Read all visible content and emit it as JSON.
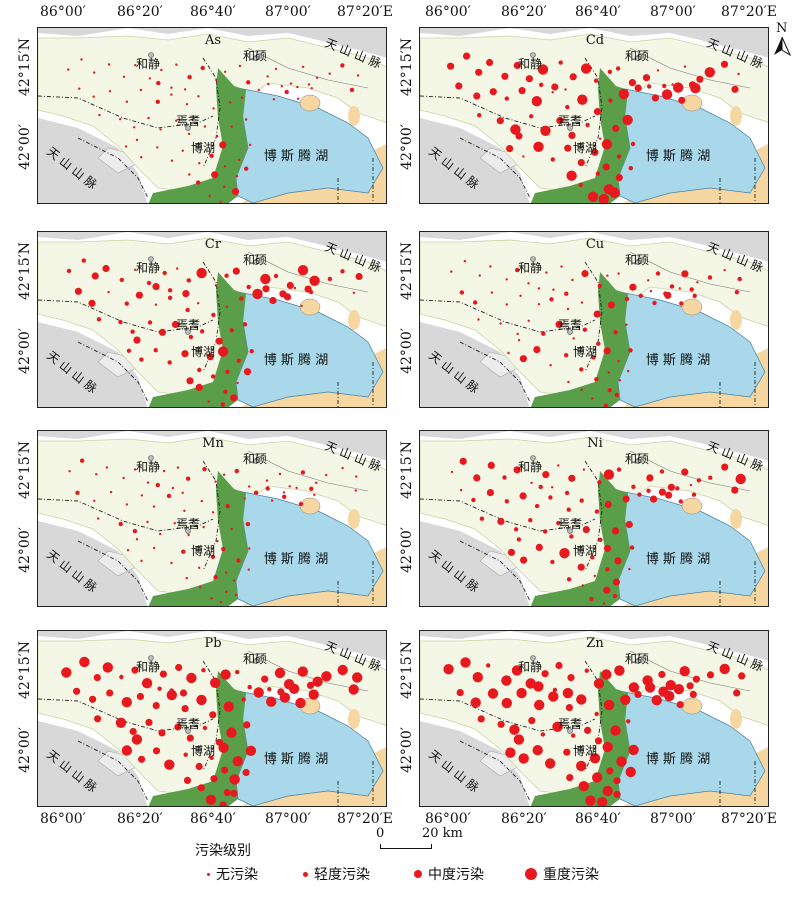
{
  "lon_labels": [
    "86°00′",
    "86°20′",
    "86°40′",
    "87°00′",
    "87°20′E"
  ],
  "lat_labels": [
    "42°15′N",
    "42°00′"
  ],
  "north_label": "N",
  "scale": {
    "start": "0",
    "end": "20 km"
  },
  "place_names": {
    "hejing": "和静",
    "heshuo": "和硕",
    "yanqi": "焉耆",
    "bohu": "博湖",
    "lake": "博 斯 腾 湖",
    "mountain_top": "天 山 山 脉",
    "mountain_left": "天 山 山 脉"
  },
  "legend": {
    "title": "污染级别",
    "items": [
      {
        "label": "无污染",
        "color": "#e8191e"
      },
      {
        "label": "轻度污染",
        "color": "#e8191e"
      },
      {
        "label": "中度污染",
        "color": "#e8191e"
      },
      {
        "label": "重度污染",
        "color": "#e8191e"
      }
    ]
  },
  "elements": [
    {
      "name": "As",
      "level_mix": [
        0.8,
        0.16,
        0.04,
        0.0
      ]
    },
    {
      "name": "Cd",
      "level_mix": [
        0.1,
        0.25,
        0.45,
        0.2
      ]
    },
    {
      "name": "Cr",
      "level_mix": [
        0.15,
        0.45,
        0.35,
        0.05
      ]
    },
    {
      "name": "Cu",
      "level_mix": [
        0.45,
        0.4,
        0.15,
        0.0
      ]
    },
    {
      "name": "Mn",
      "level_mix": [
        0.85,
        0.15,
        0.0,
        0.0
      ]
    },
    {
      "name": "Ni",
      "level_mix": [
        0.15,
        0.4,
        0.4,
        0.05
      ]
    },
    {
      "name": "Pb",
      "level_mix": [
        0.0,
        0.1,
        0.4,
        0.5
      ]
    },
    {
      "name": "Zn",
      "level_mix": [
        0.0,
        0.1,
        0.35,
        0.55
      ]
    }
  ],
  "colors": {
    "basin": "#f5f7e6",
    "lake": "#a8d8ea",
    "wetland": "#5a9e4a",
    "desert": "#f6d7a1",
    "mountain": "#d8d8d8",
    "point": "#e8191e"
  }
}
